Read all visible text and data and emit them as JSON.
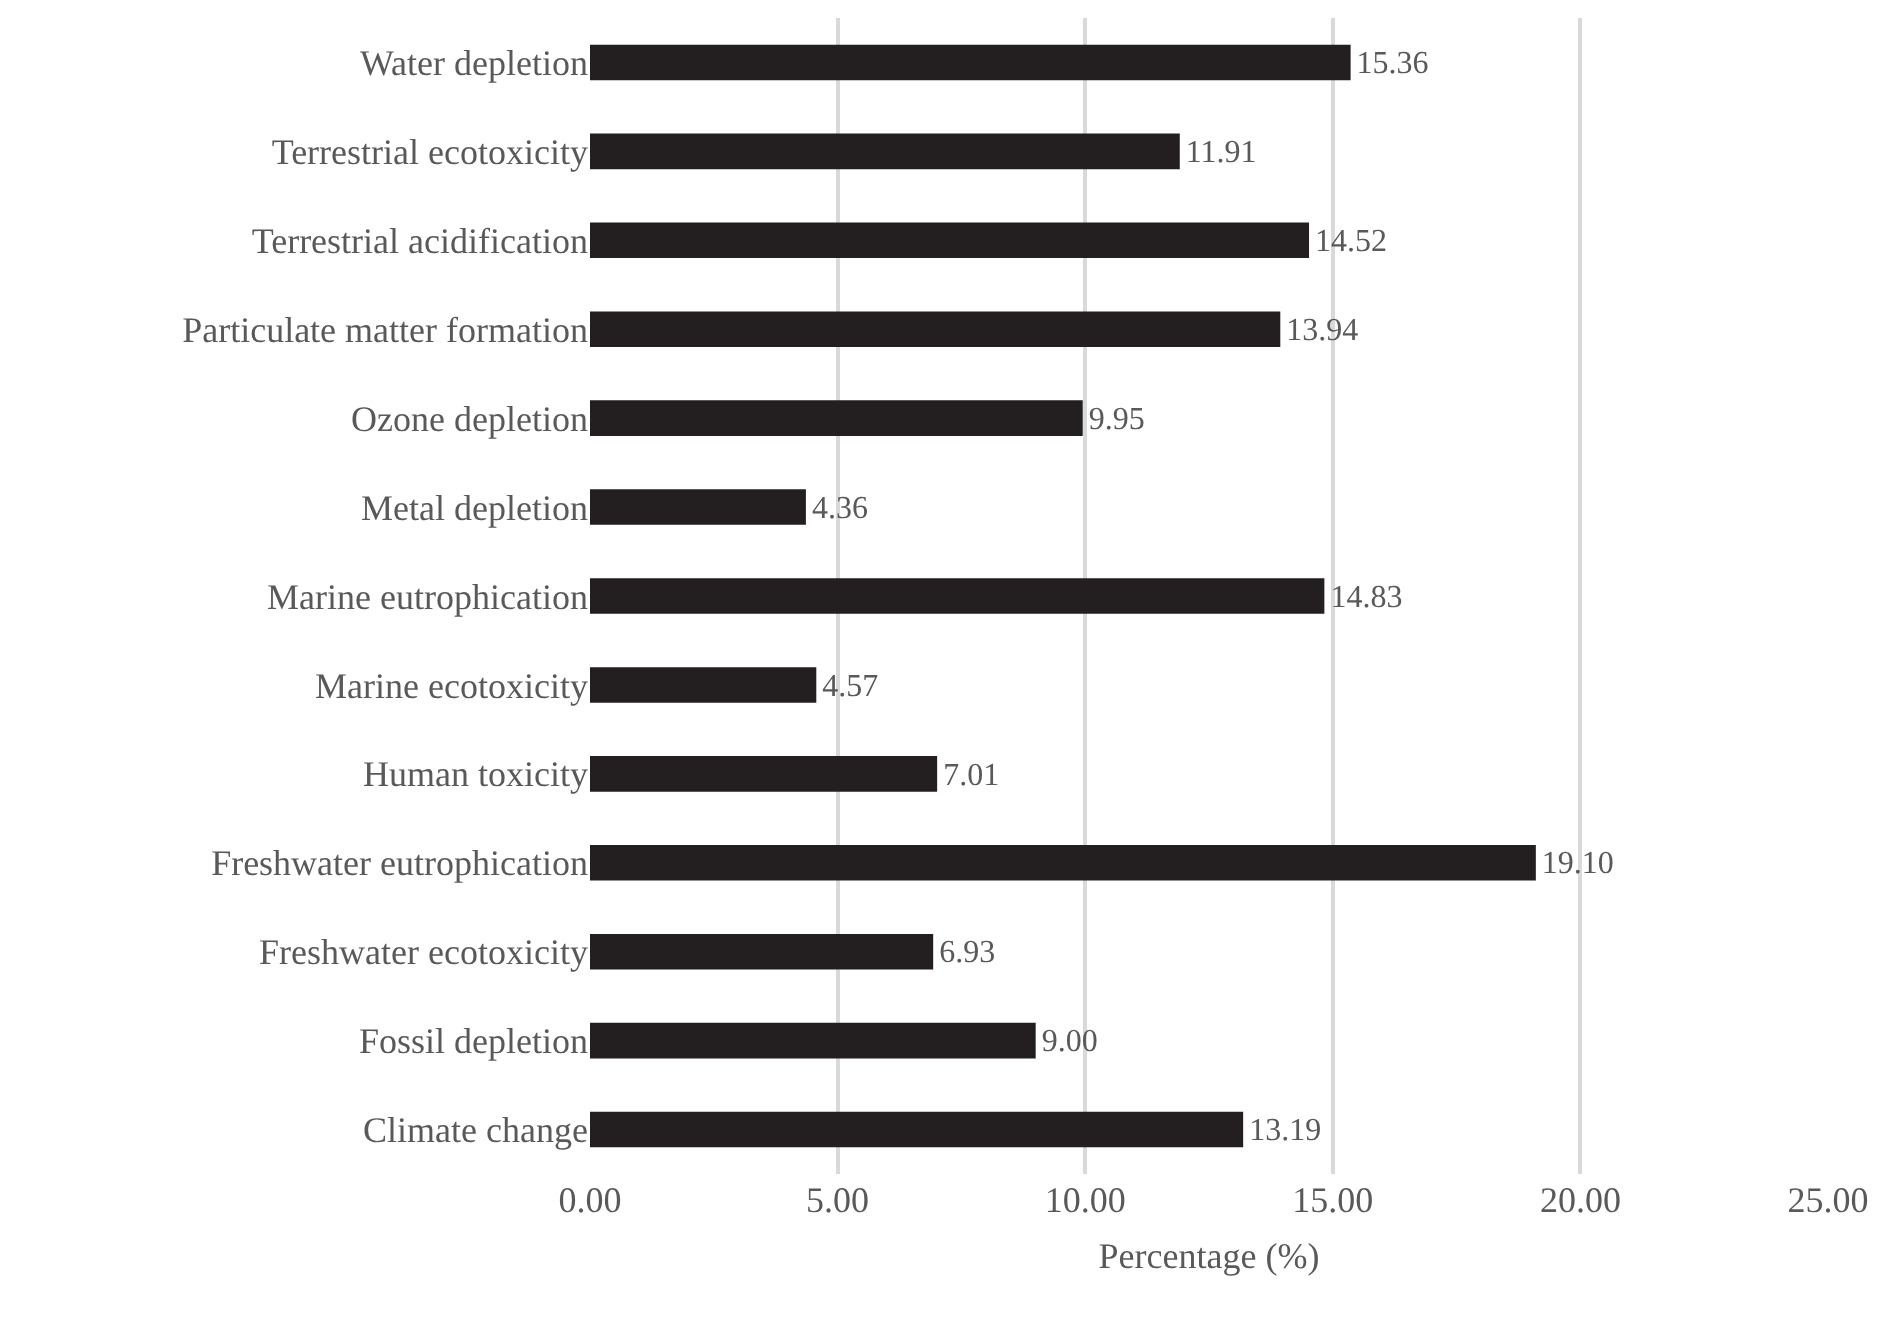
{
  "chart_data": {
    "type": "bar",
    "orientation": "horizontal",
    "xlabel": "Percentage (%)",
    "categories": [
      "Water depletion",
      "Terrestrial ecotoxicity",
      "Terrestrial acidification",
      "Particulate matter formation",
      "Ozone depletion",
      "Metal depletion",
      "Marine eutrophication",
      "Marine ecotoxicity",
      "Human toxicity",
      "Freshwater eutrophication",
      "Freshwater ecotoxicity",
      "Fossil depletion",
      "Climate change"
    ],
    "values": [
      15.36,
      11.91,
      14.52,
      13.94,
      9.95,
      4.36,
      14.83,
      4.57,
      7.01,
      19.1,
      6.93,
      9.0,
      13.19
    ],
    "value_labels": [
      "15.36",
      "11.91",
      "14.52",
      "13.94",
      "9.95",
      "4.36",
      "14.83",
      "4.57",
      "7.01",
      "19.10",
      "6.93",
      "9.00",
      "13.19"
    ],
    "color": "#231f20",
    "xlim": [
      0,
      25
    ],
    "xticks": [
      {
        "value": 0,
        "label": "0.00"
      },
      {
        "value": 5,
        "label": "5.00"
      },
      {
        "value": 10,
        "label": "10.00"
      },
      {
        "value": 15,
        "label": "15.00"
      },
      {
        "value": 20,
        "label": "20.00"
      },
      {
        "value": 25,
        "label": "25.00"
      }
    ],
    "grid": "x",
    "legend": false
  }
}
